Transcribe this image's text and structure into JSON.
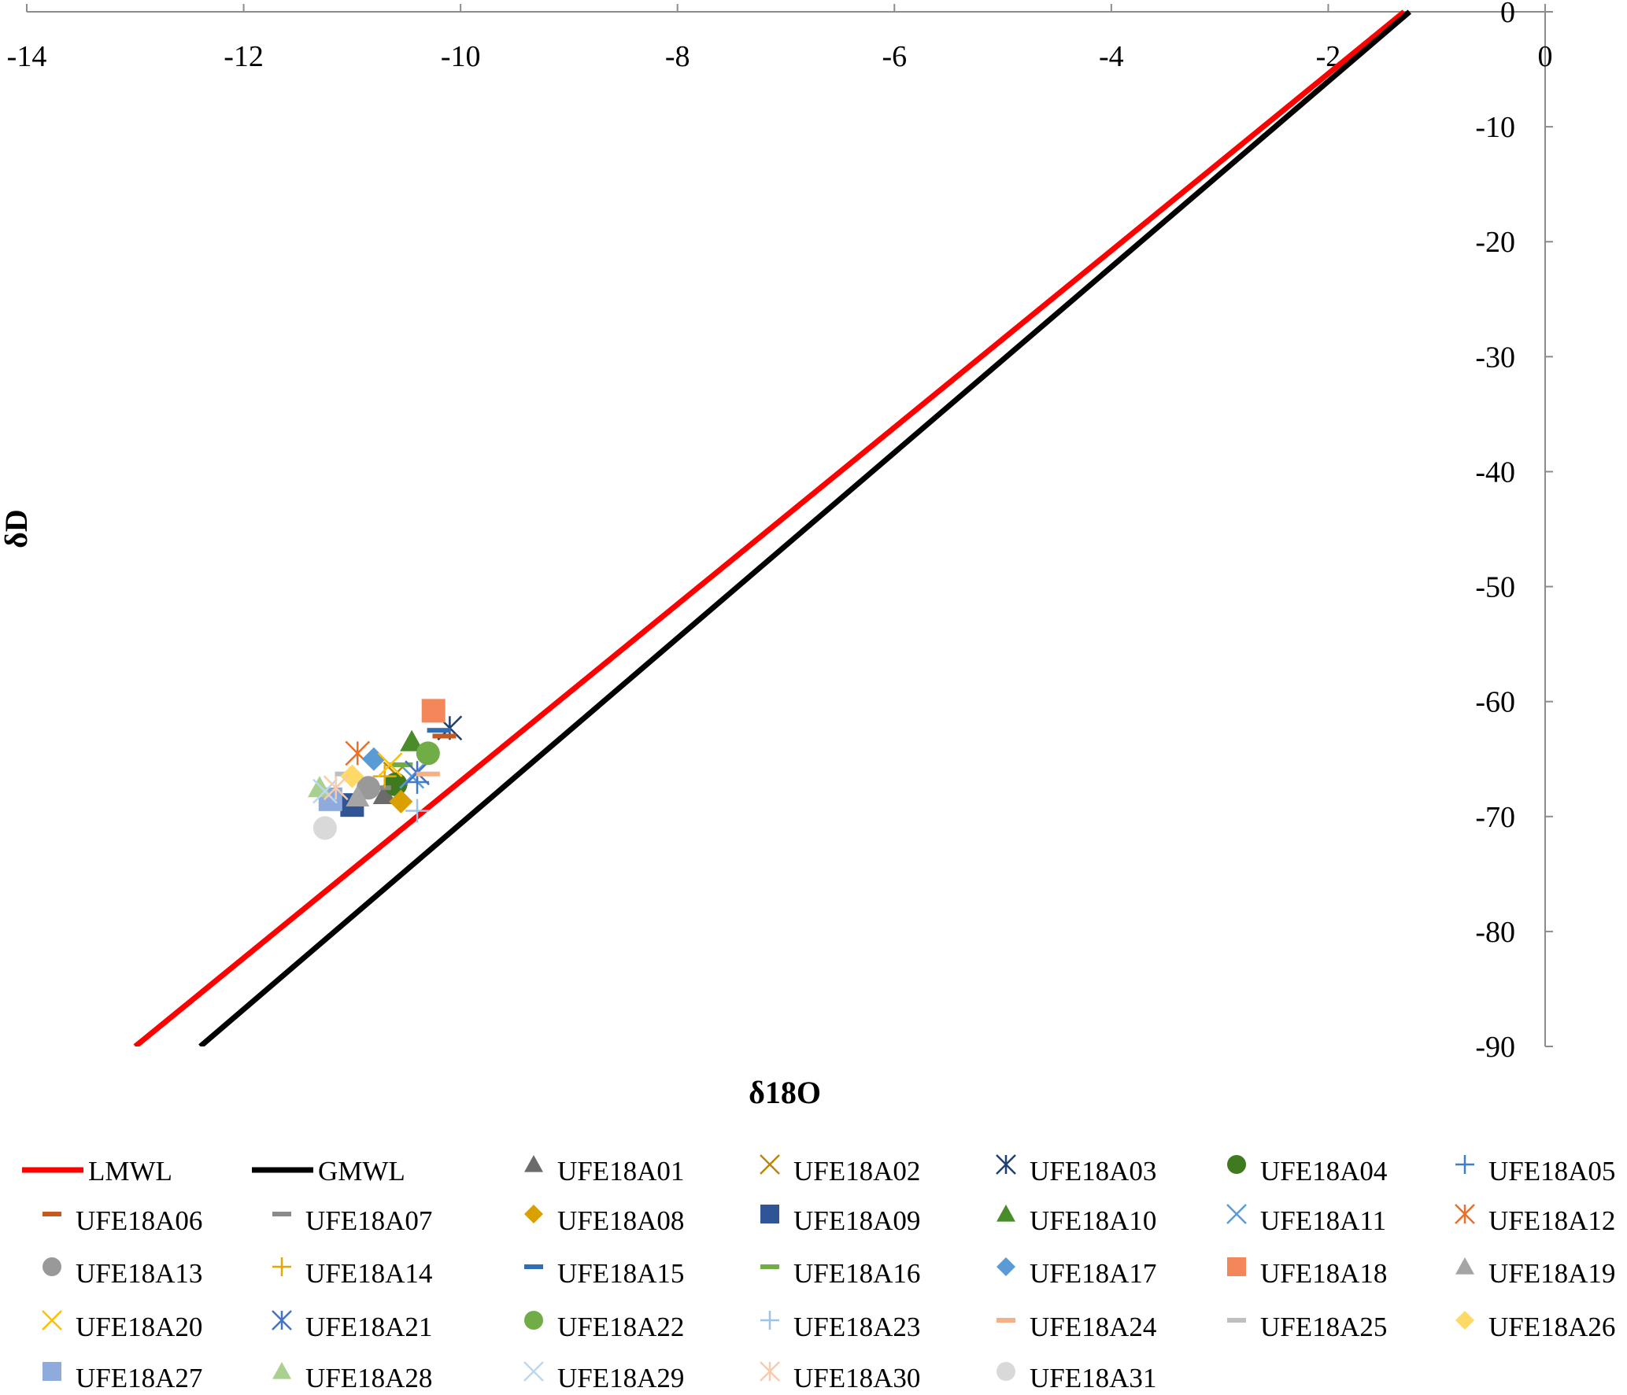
{
  "chart_data": {
    "type": "scatter",
    "title": "",
    "xlabel": "δ18O",
    "ylabel": "δD",
    "xlim": [
      -14,
      0
    ],
    "ylim": [
      -90,
      0
    ],
    "x_ticks": [
      "-14",
      "-12",
      "-10",
      "-8",
      "-6",
      "-4",
      "-2",
      "0"
    ],
    "y_ticks": [
      "0",
      "-10",
      "-20",
      "-30",
      "-40",
      "-50",
      "-60",
      "-70",
      "-80",
      "-90"
    ],
    "grid": false,
    "legend_position": "bottom",
    "lines": [
      {
        "name": "LMWL",
        "color": "#ff0000",
        "points": [
          [
            -13.0,
            -90
          ],
          [
            -1.3,
            0
          ]
        ]
      },
      {
        "name": "GMWL",
        "color": "#000000",
        "points": [
          [
            -12.4,
            -90
          ],
          [
            -1.25,
            0
          ]
        ]
      }
    ],
    "series": [
      {
        "name": "UFE18A01",
        "marker": "triangle",
        "color": "#6b6b6b",
        "x": -10.7,
        "y": -68.1
      },
      {
        "name": "UFE18A02",
        "marker": "x",
        "color": "#b8860b",
        "x": -10.6,
        "y": -66.3
      },
      {
        "name": "UFE18A03",
        "marker": "asterisk",
        "color": "#1f3f6e",
        "x": -10.1,
        "y": -62.3
      },
      {
        "name": "UFE18A04",
        "marker": "circle",
        "color": "#3f7a1f",
        "x": -10.6,
        "y": -67.2
      },
      {
        "name": "UFE18A05",
        "marker": "plus",
        "color": "#3d7fc4",
        "x": -10.4,
        "y": -67.0
      },
      {
        "name": "UFE18A06",
        "marker": "dash",
        "color": "#c65a1e",
        "x": -10.15,
        "y": -63.0
      },
      {
        "name": "UFE18A07",
        "marker": "dash",
        "color": "#8a8a8a",
        "x": -10.75,
        "y": -67.5
      },
      {
        "name": "UFE18A08",
        "marker": "diamond",
        "color": "#d9a000",
        "x": -10.55,
        "y": -68.7
      },
      {
        "name": "UFE18A09",
        "marker": "square",
        "color": "#2f5597",
        "x": -11.0,
        "y": -69.0
      },
      {
        "name": "UFE18A10",
        "marker": "triangle",
        "color": "#4a8c2a",
        "x": -10.45,
        "y": -63.5
      },
      {
        "name": "UFE18A11",
        "marker": "x",
        "color": "#5b9bd5",
        "x": -10.45,
        "y": -66.5
      },
      {
        "name": "UFE18A12",
        "marker": "asterisk",
        "color": "#e8702a",
        "x": -10.95,
        "y": -64.5
      },
      {
        "name": "UFE18A13",
        "marker": "circle",
        "color": "#999999",
        "x": -10.85,
        "y": -67.5
      },
      {
        "name": "UFE18A14",
        "marker": "plus",
        "color": "#e6a800",
        "x": -10.7,
        "y": -66.5
      },
      {
        "name": "UFE18A15",
        "marker": "dash",
        "color": "#2f6db5",
        "x": -10.2,
        "y": -62.5
      },
      {
        "name": "UFE18A16",
        "marker": "dash",
        "color": "#70ad47",
        "x": -10.55,
        "y": -65.5
      },
      {
        "name": "UFE18A17",
        "marker": "diamond",
        "color": "#5b9bd5",
        "x": -10.8,
        "y": -65.0
      },
      {
        "name": "UFE18A18",
        "marker": "square",
        "color": "#f4875a",
        "x": -10.25,
        "y": -60.8
      },
      {
        "name": "UFE18A19",
        "marker": "triangle",
        "color": "#a5a5a5",
        "x": -10.95,
        "y": -68.3
      },
      {
        "name": "UFE18A20",
        "marker": "x",
        "color": "#ffc000",
        "x": -10.65,
        "y": -65.5
      },
      {
        "name": "UFE18A21",
        "marker": "asterisk",
        "color": "#4472c4",
        "x": -10.4,
        "y": -66.2
      },
      {
        "name": "UFE18A22",
        "marker": "circle",
        "color": "#70ad47",
        "x": -10.3,
        "y": -64.5
      },
      {
        "name": "UFE18A23",
        "marker": "plus",
        "color": "#9dc3e6",
        "x": -10.4,
        "y": -69.5
      },
      {
        "name": "UFE18A24",
        "marker": "dash",
        "color": "#f4b183",
        "x": -10.3,
        "y": -66.3
      },
      {
        "name": "UFE18A25",
        "marker": "dash",
        "color": "#bfbfbf",
        "x": -11.05,
        "y": -66.3
      },
      {
        "name": "UFE18A26",
        "marker": "diamond",
        "color": "#ffd966",
        "x": -11.0,
        "y": -66.5
      },
      {
        "name": "UFE18A27",
        "marker": "square",
        "color": "#8faadc",
        "x": -11.2,
        "y": -68.5
      },
      {
        "name": "UFE18A28",
        "marker": "triangle",
        "color": "#a9d08e",
        "x": -11.3,
        "y": -67.5
      },
      {
        "name": "UFE18A29",
        "marker": "x",
        "color": "#bdd7ee",
        "x": -11.25,
        "y": -67.8
      },
      {
        "name": "UFE18A30",
        "marker": "asterisk",
        "color": "#f8cbad",
        "x": -11.15,
        "y": -67.5
      },
      {
        "name": "UFE18A31",
        "marker": "circle",
        "color": "#d9d9d9",
        "x": -11.25,
        "y": -71.0
      }
    ]
  }
}
